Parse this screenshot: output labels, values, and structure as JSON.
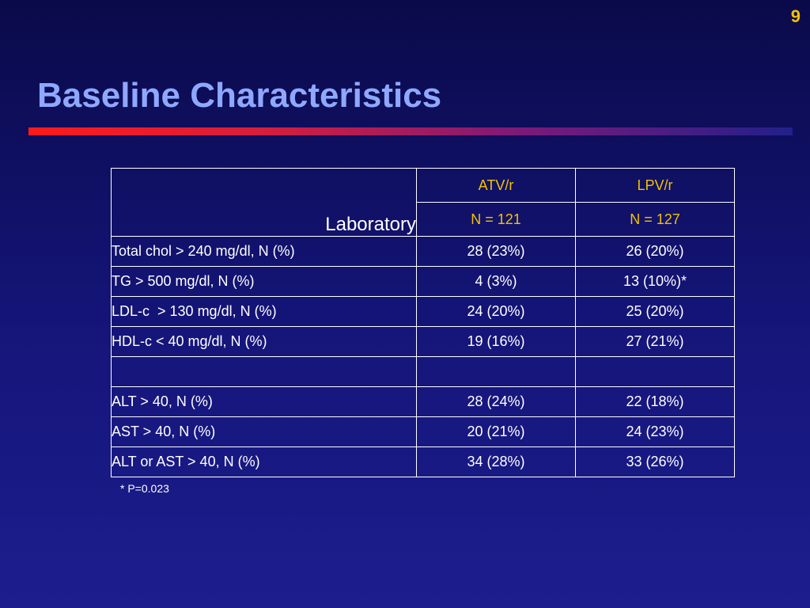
{
  "slide": {
    "number": "9",
    "title": "Baseline Characteristics"
  },
  "table": {
    "corner_label": "Laboratory",
    "groups": [
      {
        "name": "ATV/r",
        "n": "N = 121"
      },
      {
        "name": "LPV/r",
        "n": "N = 127"
      }
    ],
    "rows": [
      {
        "label": "Total chol > 240 mg/dl, N (%)",
        "atv": "28 (23%)",
        "lpv": "26 (20%)"
      },
      {
        "label": "TG > 500 mg/dl, N (%)",
        "atv": "4 (3%)",
        "lpv": "13 (10%)*"
      },
      {
        "label": "LDL-c  > 130 mg/dl, N (%)",
        "atv": "24 (20%)",
        "lpv": "25 (20%)"
      },
      {
        "label": "HDL-c < 40 mg/dl, N (%)",
        "atv": "19 (16%)",
        "lpv": "27 (21%)"
      },
      {
        "label": "",
        "atv": "",
        "lpv": ""
      },
      {
        "label": "ALT > 40, N (%)",
        "atv": "28 (24%)",
        "lpv": "22 (18%)"
      },
      {
        "label": "AST > 40, N (%)",
        "atv": "20 (21%)",
        "lpv": "24 (23%)"
      },
      {
        "label": "ALT or AST > 40, N (%)",
        "atv": "34 (28%)",
        "lpv": "33 (26%)"
      }
    ]
  },
  "footnote": "* P=0.023",
  "colors": {
    "background": "#15157a",
    "title": "#8fa8ff",
    "accent": "#f2c200",
    "rule_start": "#ff1a1a",
    "text": "#ffffff"
  }
}
